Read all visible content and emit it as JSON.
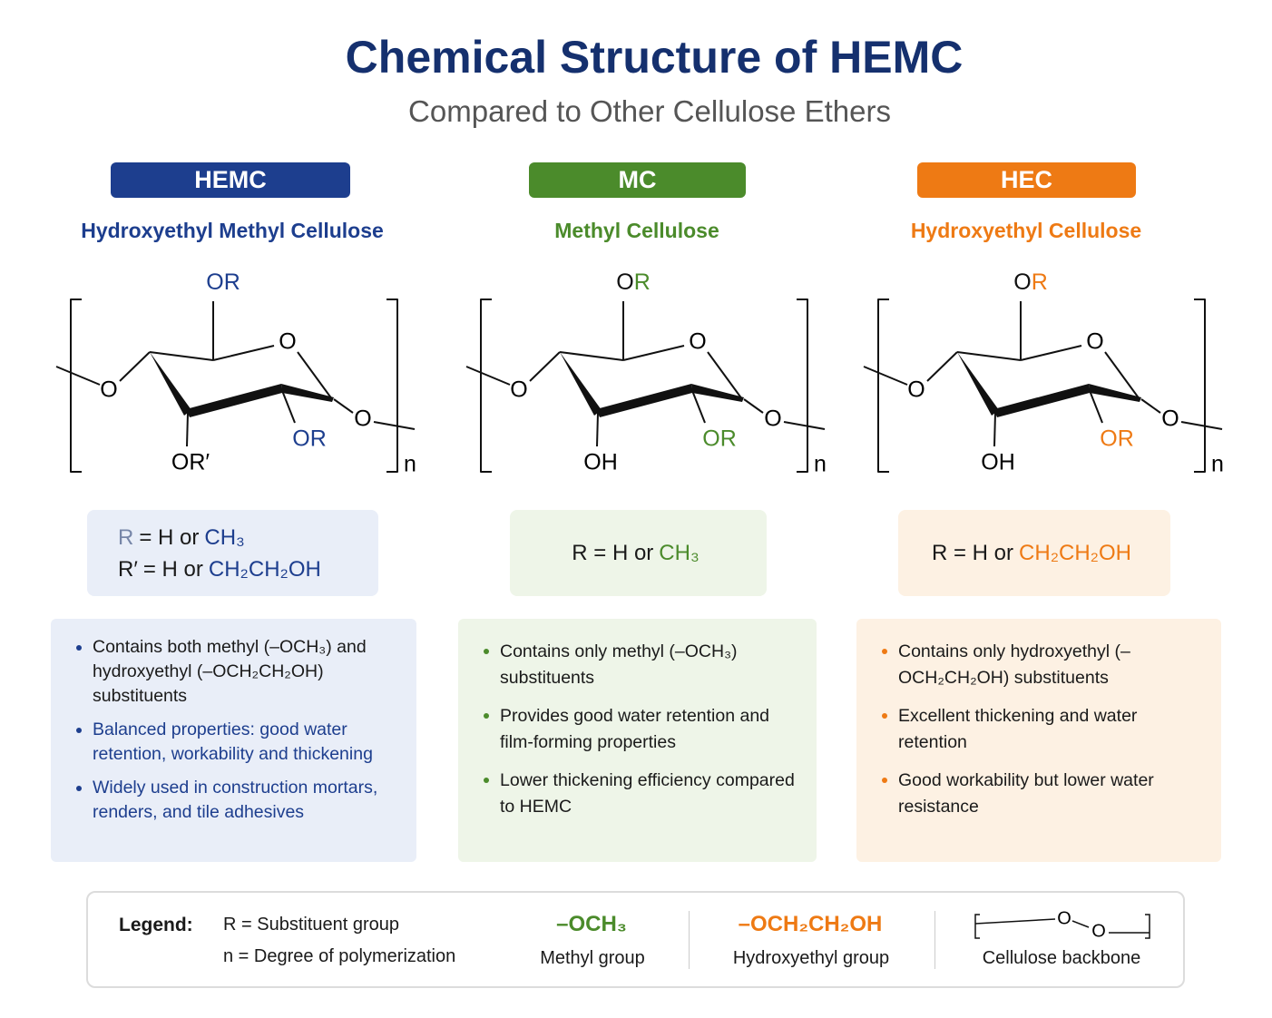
{
  "header": {
    "title": "Chemical Structure of HEMC",
    "subtitle": "Compared to Other Cellulose Ethers"
  },
  "columns": [
    {
      "badge": "HEMC",
      "name": "Hydroxyethyl Methyl Cellulose",
      "color": "#1d3e8e",
      "tint": "#e9eef8",
      "structure": {
        "top": [
          "O",
          "R"
        ],
        "top_o_accent": true,
        "ring_o": "O",
        "left_o": "O",
        "right_o": "O",
        "bottom_right": "OR",
        "bottom_left": "OR′",
        "n": "n"
      },
      "definition": [
        [
          {
            "text": "R",
            "style": "muted"
          },
          {
            "text": "= H or",
            "style": "plain"
          },
          {
            "text": "CH₃",
            "style": "accent"
          }
        ],
        [
          {
            "text": "R′",
            "style": "plain"
          },
          {
            "text": "= H or",
            "style": "plain"
          },
          {
            "text": "CH₂CH₂OH",
            "style": "accent"
          }
        ]
      ],
      "bullets": [
        {
          "text": "Contains both methyl (–OCH₃) and hydroxyethyl (–OCH₂CH₂OH) substituents",
          "accent": false
        },
        {
          "text": "Balanced properties: good water retention, workability and thickening",
          "accent": true
        },
        {
          "text": "Widely used in construction mortars, renders, and tile adhesives",
          "accent": true
        }
      ]
    },
    {
      "badge": "MC",
      "name": "Methyl Cellulose",
      "color": "#4b8b2b",
      "tint": "#eef5e8",
      "structure": {
        "top": [
          "O",
          "R"
        ],
        "top_o_accent": false,
        "ring_o": "O",
        "left_o": "O",
        "right_o": "O",
        "bottom_right": "OR",
        "bottom_left": "OH",
        "n": "n"
      },
      "definition": [
        [
          {
            "text": "R = H or",
            "style": "plain"
          },
          {
            "text": "CH₃",
            "style": "accent"
          }
        ]
      ],
      "bullets": [
        {
          "text": "Contains only methyl (–OCH₃) substituents",
          "accent": false
        },
        {
          "text": "Provides good water retention and film-forming properties",
          "accent": false
        },
        {
          "text": "Lower thickening efficiency compared to HEMC",
          "accent": false
        }
      ]
    },
    {
      "badge": "HEC",
      "name": "Hydroxyethyl Cellulose",
      "color": "#ee7a14",
      "tint": "#fdf1e3",
      "structure": {
        "top": [
          "O",
          "R"
        ],
        "top_o_accent": false,
        "ring_o": "O",
        "left_o": "O",
        "right_o": "O",
        "bottom_right": "OR",
        "bottom_left": "OH",
        "n": "n"
      },
      "definition": [
        [
          {
            "text": "R = H or",
            "style": "plain"
          },
          {
            "text": "CH₂CH₂OH",
            "style": "accent"
          }
        ]
      ],
      "bullets": [
        {
          "text": "Contains only hydroxyethyl (–OCH₂CH₂OH) substituents",
          "accent": false
        },
        {
          "text": "Excellent thickening and water retention",
          "accent": false
        },
        {
          "text": "Good workability but lower water resistance",
          "accent": false
        }
      ]
    }
  ],
  "legend": {
    "label": "Legend:",
    "r_note": "R = Substituent group",
    "n_note": "n = Degree of polymerization",
    "methyl_formula": "–OCH₃",
    "methyl_name": "Methyl group",
    "hydroxyethyl_formula": "–OCH₂CH₂OH",
    "hydroxyethyl_name": "Hydroxyethyl group",
    "backbone_o1": "O",
    "backbone_o2": "O",
    "backbone_name": "Cellulose backbone"
  }
}
